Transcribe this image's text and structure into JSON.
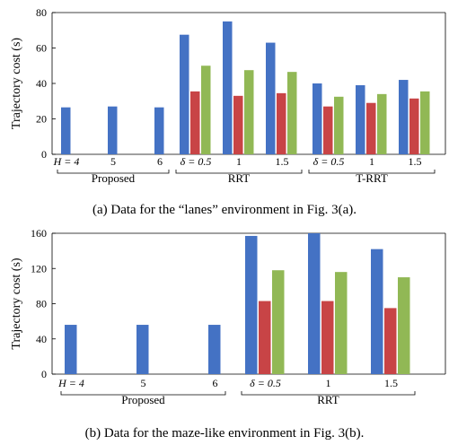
{
  "colors": {
    "blue": "#4472c4",
    "red": "#c84446",
    "green": "#91b855",
    "axis": "#000000"
  },
  "chart_data": [
    {
      "type": "bar",
      "ylabel": "Trajectory cost (s)",
      "ylim": [
        0,
        80
      ],
      "yticks": [
        0,
        20,
        40,
        60,
        80
      ],
      "grid": false,
      "legend": "none",
      "caption": "(a) Data for the “lanes” environment in Fig. 3(a).",
      "groups": [
        {
          "label": "Proposed",
          "ticks": [
            "H = 4",
            "5",
            "6"
          ],
          "bars": [
            [
              26.5
            ],
            [
              27
            ],
            [
              26.5
            ]
          ]
        },
        {
          "label": "RRT",
          "ticks": [
            "δ = 0.5",
            "1",
            "1.5"
          ],
          "bars": [
            [
              67.5,
              35.5,
              50
            ],
            [
              75,
              33,
              47.5
            ],
            [
              63,
              34.5,
              46.5
            ]
          ]
        },
        {
          "label": "T-RRT",
          "ticks": [
            "δ = 0.5",
            "1",
            "1.5"
          ],
          "bars": [
            [
              40,
              27,
              32.5
            ],
            [
              39,
              29,
              34
            ],
            [
              42,
              31.5,
              35.5
            ]
          ]
        }
      ]
    },
    {
      "type": "bar",
      "ylabel": "Trajectory cost (s)",
      "ylim": [
        0,
        160
      ],
      "yticks": [
        0,
        40,
        80,
        120,
        160
      ],
      "grid": false,
      "legend": "none",
      "caption": "(b) Data for the maze-like environment in Fig. 3(b).",
      "groups": [
        {
          "label": "Proposed",
          "ticks": [
            "H = 4",
            "5",
            "6"
          ],
          "bars": [
            [
              56
            ],
            [
              56
            ],
            [
              56
            ]
          ]
        },
        {
          "label": "RRT",
          "ticks": [
            "δ = 0.5",
            "1",
            "1.5"
          ],
          "bars": [
            [
              157,
              83,
              118
            ],
            [
              160,
              83,
              116
            ],
            [
              142,
              75,
              110
            ]
          ]
        }
      ]
    }
  ]
}
